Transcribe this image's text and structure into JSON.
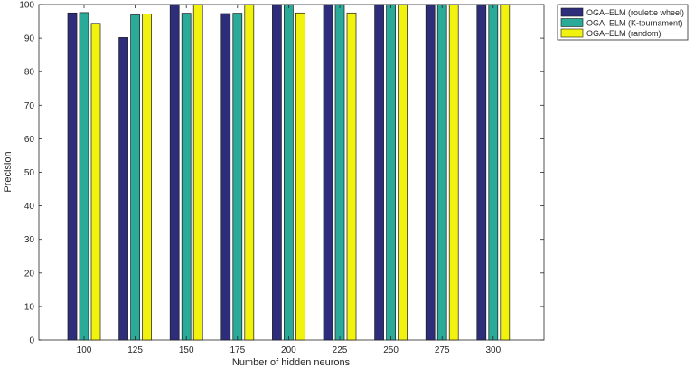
{
  "chart_data": {
    "type": "bar",
    "xlabel": "Number of hidden neurons",
    "ylabel": "Precision",
    "ylim": [
      0,
      100
    ],
    "yticks": [
      0,
      10,
      20,
      30,
      40,
      50,
      60,
      70,
      80,
      90,
      100
    ],
    "categories": [
      "100",
      "125",
      "150",
      "175",
      "200",
      "225",
      "250",
      "275",
      "300"
    ],
    "series": [
      {
        "name": "OGA–ELM (roulette wheel)",
        "color": "#2e2d7b",
        "values": [
          97.5,
          90.2,
          100,
          97.3,
          100,
          100,
          100,
          100,
          100
        ]
      },
      {
        "name": "OGA–ELM (K-tournament)",
        "color": "#2aab9a",
        "values": [
          97.6,
          96.9,
          97.4,
          97.4,
          100,
          100,
          100,
          100,
          100
        ]
      },
      {
        "name": "OGA–ELM (random)",
        "color": "#f2f20f",
        "values": [
          94.4,
          97.2,
          100,
          100,
          97.5,
          97.5,
          100,
          100,
          100
        ]
      }
    ],
    "grid": false,
    "legend_position": "outside-top-right"
  }
}
